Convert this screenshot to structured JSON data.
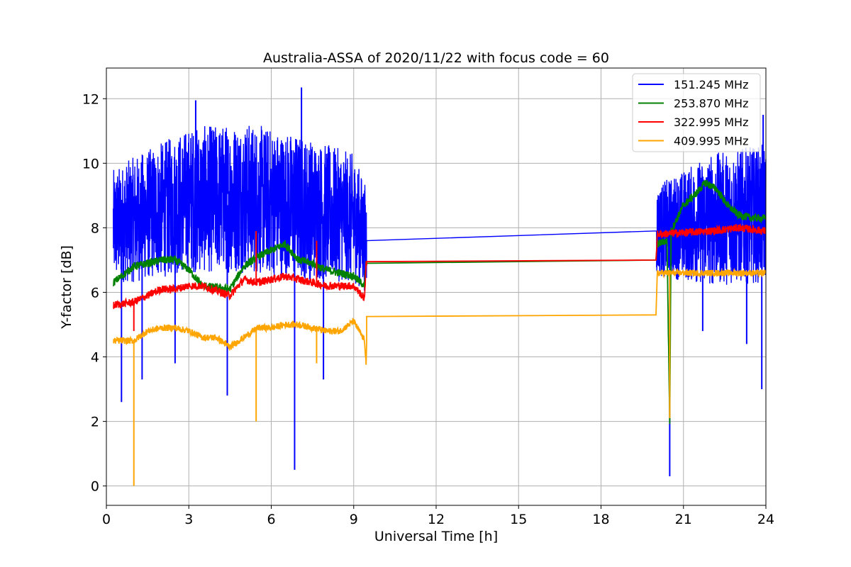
{
  "chart_data": {
    "type": "line",
    "title": "Australia-ASSA of 2020/11/22 with focus code = 60",
    "xlabel": "Universal Time [h]",
    "ylabel": "Y-factor [dB]",
    "xlim": [
      0,
      24
    ],
    "ylim": [
      -0.6,
      12.95
    ],
    "xticks": [
      0,
      3,
      6,
      9,
      12,
      15,
      18,
      21,
      24
    ],
    "yticks": [
      0,
      2,
      4,
      6,
      8,
      10,
      12
    ],
    "grid": true,
    "legend_position": "top-right",
    "series": [
      {
        "name": "151.245 MHz",
        "color": "#0000ff",
        "baseline": [
          [
            0.25,
            8.0
          ],
          [
            1.0,
            8.2
          ],
          [
            2.0,
            8.4
          ],
          [
            3.0,
            8.6
          ],
          [
            4.0,
            8.7
          ],
          [
            5.0,
            8.7
          ],
          [
            6.0,
            8.6
          ],
          [
            7.0,
            8.4
          ],
          [
            8.0,
            8.2
          ],
          [
            9.0,
            7.9
          ],
          [
            9.45,
            7.6
          ],
          [
            20.0,
            7.9
          ],
          [
            20.5,
            8.0
          ],
          [
            22.0,
            8.2
          ],
          [
            24.0,
            8.3
          ]
        ],
        "spread_low": [
          [
            0.25,
            6.3
          ],
          [
            1.0,
            6.3
          ],
          [
            3.0,
            6.6
          ],
          [
            5.0,
            6.6
          ],
          [
            7.0,
            6.4
          ],
          [
            9.0,
            6.3
          ],
          [
            9.45,
            6.0
          ],
          [
            20.0,
            6.5
          ],
          [
            22.0,
            6.2
          ],
          [
            24.0,
            6.3
          ]
        ],
        "spread_high": [
          [
            0.25,
            9.8
          ],
          [
            1.0,
            10.2
          ],
          [
            3.0,
            11.1
          ],
          [
            5.0,
            11.3
          ],
          [
            7.0,
            10.9
          ],
          [
            9.0,
            10.3
          ],
          [
            9.45,
            9.3
          ],
          [
            20.0,
            9.3
          ],
          [
            22.0,
            10.3
          ],
          [
            24.0,
            10.6
          ]
        ],
        "spikes": [
          [
            1.3,
            3.3
          ],
          [
            2.5,
            3.8
          ],
          [
            3.25,
            11.95
          ],
          [
            4.4,
            2.8
          ],
          [
            6.25,
            8.4
          ],
          [
            6.85,
            0.5
          ],
          [
            7.1,
            12.35
          ],
          [
            7.9,
            3.3
          ],
          [
            20.5,
            0.3
          ],
          [
            21.7,
            4.8
          ],
          [
            23.3,
            4.4
          ],
          [
            23.85,
            3.0
          ],
          [
            23.9,
            11.5
          ],
          [
            0.55,
            2.6
          ]
        ]
      },
      {
        "name": "253.870 MHz",
        "color": "#008000",
        "points": [
          [
            0.25,
            6.3
          ],
          [
            1.0,
            6.8
          ],
          [
            2.0,
            7.0
          ],
          [
            2.5,
            7.0
          ],
          [
            3.0,
            6.7
          ],
          [
            3.5,
            6.2
          ],
          [
            4.5,
            6.1
          ],
          [
            5.0,
            6.8
          ],
          [
            5.5,
            7.1
          ],
          [
            6.0,
            7.3
          ],
          [
            6.5,
            7.5
          ],
          [
            7.0,
            7.0
          ],
          [
            7.5,
            6.9
          ],
          [
            8.0,
            6.7
          ],
          [
            9.0,
            6.5
          ],
          [
            9.4,
            6.2
          ],
          [
            9.45,
            6.9
          ],
          [
            20.0,
            7.0
          ],
          [
            20.05,
            7.5
          ],
          [
            20.4,
            7.6
          ],
          [
            20.5,
            2.0
          ],
          [
            20.55,
            7.9
          ],
          [
            21.0,
            8.7
          ],
          [
            21.5,
            9.1
          ],
          [
            21.8,
            9.4
          ],
          [
            22.2,
            9.2
          ],
          [
            22.6,
            8.7
          ],
          [
            23.0,
            8.4
          ],
          [
            23.5,
            8.3
          ],
          [
            24.0,
            8.3
          ]
        ]
      },
      {
        "name": "322.995 MHz",
        "color": "#ff0000",
        "points": [
          [
            0.25,
            5.6
          ],
          [
            1.0,
            5.7
          ],
          [
            1.5,
            5.9
          ],
          [
            2.0,
            6.1
          ],
          [
            2.5,
            6.1
          ],
          [
            3.0,
            6.2
          ],
          [
            3.5,
            6.2
          ],
          [
            4.5,
            5.9
          ],
          [
            5.0,
            6.4
          ],
          [
            5.5,
            6.3
          ],
          [
            6.0,
            6.4
          ],
          [
            6.5,
            6.5
          ],
          [
            7.0,
            6.4
          ],
          [
            7.5,
            6.3
          ],
          [
            8.0,
            6.2
          ],
          [
            9.0,
            6.2
          ],
          [
            9.4,
            5.8
          ],
          [
            9.45,
            6.95
          ],
          [
            20.0,
            7.0
          ],
          [
            20.05,
            7.8
          ],
          [
            21.0,
            7.85
          ],
          [
            22.0,
            7.9
          ],
          [
            23.0,
            8.0
          ],
          [
            24.0,
            7.9
          ]
        ],
        "spikes": [
          [
            5.45,
            7.9
          ],
          [
            7.65,
            7.6
          ],
          [
            1.0,
            4.8
          ]
        ]
      },
      {
        "name": "409.995 MHz",
        "color": "#ffa500",
        "points": [
          [
            0.25,
            4.5
          ],
          [
            1.0,
            4.5
          ],
          [
            1.5,
            4.8
          ],
          [
            2.0,
            4.9
          ],
          [
            2.5,
            4.9
          ],
          [
            3.0,
            4.8
          ],
          [
            3.5,
            4.6
          ],
          [
            4.0,
            4.6
          ],
          [
            4.5,
            4.3
          ],
          [
            5.0,
            4.6
          ],
          [
            5.5,
            4.9
          ],
          [
            6.0,
            4.9
          ],
          [
            6.5,
            5.0
          ],
          [
            7.0,
            5.0
          ],
          [
            7.5,
            4.9
          ],
          [
            8.0,
            4.8
          ],
          [
            8.5,
            4.8
          ],
          [
            9.0,
            5.1
          ],
          [
            9.4,
            4.5
          ],
          [
            9.45,
            3.8
          ],
          [
            9.5,
            5.25
          ],
          [
            20.0,
            5.3
          ],
          [
            20.05,
            6.6
          ],
          [
            21.0,
            6.6
          ],
          [
            22.0,
            6.6
          ],
          [
            23.0,
            6.6
          ],
          [
            24.0,
            6.6
          ]
        ],
        "spikes": [
          [
            1.0,
            0.0
          ],
          [
            5.45,
            2.0
          ],
          [
            20.5,
            2.1
          ],
          [
            7.65,
            3.8
          ]
        ]
      }
    ]
  }
}
